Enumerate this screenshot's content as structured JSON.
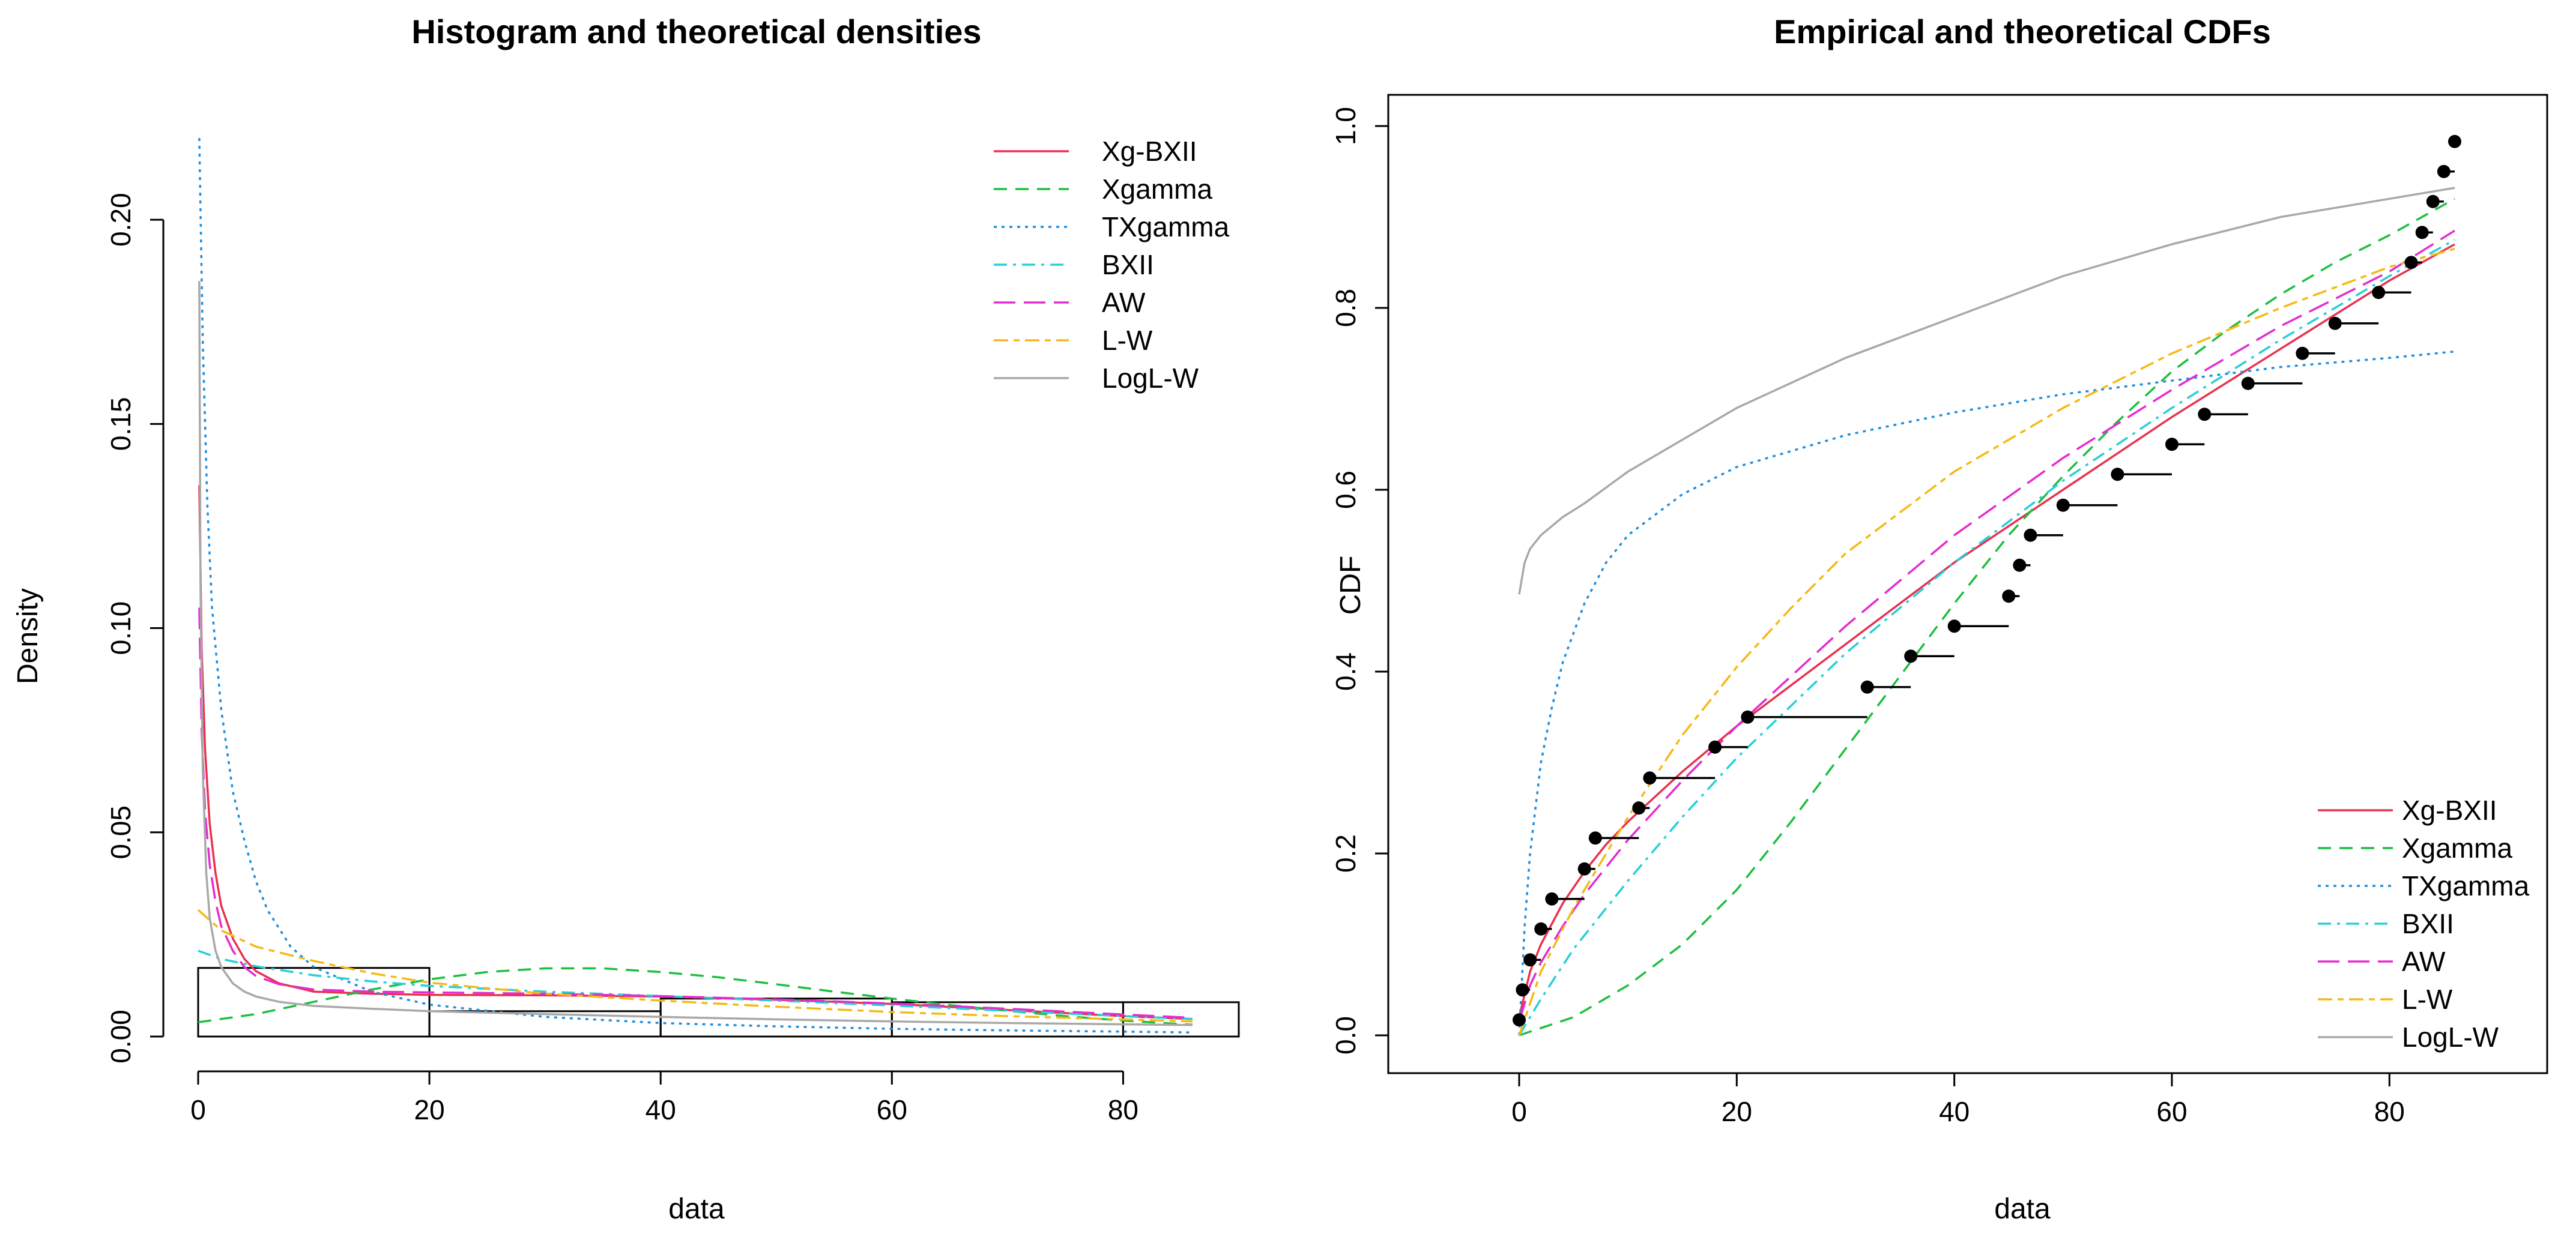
{
  "chart_data": [
    {
      "type": "histogram",
      "title": "Histogram and theoretical densities",
      "xlabel": "data",
      "ylabel": "Density",
      "xlim": [
        0,
        90
      ],
      "ylim": [
        0,
        0.22
      ],
      "xticks": [
        "0",
        "20",
        "40",
        "60",
        "80"
      ],
      "yticks": [
        "0.00",
        "0.05",
        "0.10",
        "0.15",
        "0.20"
      ],
      "legend_position": "top-right",
      "histogram": {
        "bins": [
          {
            "from": 0,
            "to": 20,
            "density": 0.0168
          },
          {
            "from": 20,
            "to": 40,
            "density": 0.0062
          },
          {
            "from": 40,
            "to": 60,
            "density": 0.0093
          },
          {
            "from": 60,
            "to": 80,
            "density": 0.0084
          },
          {
            "from": 80,
            "to": 90,
            "density": 0.0084
          }
        ]
      },
      "series": [
        {
          "name": "Xg-BXII",
          "color": "#e8314f",
          "dash": "solid",
          "x": [
            0.1,
            0.3,
            0.6,
            1,
            1.5,
            2,
            3,
            4,
            5,
            7,
            10,
            15,
            20,
            30,
            40,
            50,
            60,
            70,
            80,
            86
          ],
          "y": [
            0.135,
            0.095,
            0.07,
            0.052,
            0.04,
            0.032,
            0.024,
            0.019,
            0.016,
            0.013,
            0.011,
            0.0105,
            0.0102,
            0.0101,
            0.0098,
            0.009,
            0.008,
            0.0065,
            0.005,
            0.0043
          ]
        },
        {
          "name": "Xgamma",
          "color": "#1cbf3f",
          "dash": "dashed",
          "x": [
            0,
            5,
            10,
            15,
            20,
            25,
            30,
            35,
            40,
            45,
            50,
            55,
            60,
            65,
            70,
            75,
            80,
            86
          ],
          "y": [
            0.0035,
            0.0055,
            0.0085,
            0.0115,
            0.014,
            0.0158,
            0.0167,
            0.0167,
            0.0158,
            0.0145,
            0.0128,
            0.011,
            0.0093,
            0.0077,
            0.0063,
            0.005,
            0.0039,
            0.0029
          ]
        },
        {
          "name": "TXgamma",
          "color": "#1c8fe0",
          "dash": "dotted",
          "x": [
            0.1,
            0.4,
            0.8,
            1.2,
            2,
            3,
            4,
            5,
            6,
            8,
            10,
            15,
            20,
            30,
            40,
            50,
            60,
            70,
            80,
            86
          ],
          "y": [
            0.22,
            0.17,
            0.13,
            0.105,
            0.08,
            0.06,
            0.048,
            0.038,
            0.031,
            0.022,
            0.017,
            0.011,
            0.0078,
            0.0048,
            0.0033,
            0.0025,
            0.0019,
            0.0015,
            0.0012,
            0.001
          ]
        },
        {
          "name": "BXII",
          "color": "#26cfd8",
          "dash": "dashdot",
          "x": [
            0,
            2,
            5,
            10,
            15,
            20,
            30,
            40,
            50,
            60,
            70,
            80,
            86
          ],
          "y": [
            0.021,
            0.019,
            0.0172,
            0.015,
            0.0135,
            0.0124,
            0.011,
            0.0099,
            0.0088,
            0.0076,
            0.0063,
            0.005,
            0.0043
          ]
        },
        {
          "name": "AW",
          "color": "#e52bd0",
          "dash": "longdash",
          "x": [
            0.1,
            0.3,
            0.6,
            1,
            1.5,
            2,
            3,
            4,
            5,
            7,
            10,
            15,
            20,
            30,
            40,
            50,
            60,
            70,
            80,
            86
          ],
          "y": [
            0.105,
            0.075,
            0.055,
            0.042,
            0.033,
            0.027,
            0.021,
            0.017,
            0.0148,
            0.0128,
            0.0115,
            0.011,
            0.0108,
            0.0105,
            0.0099,
            0.0091,
            0.0081,
            0.0068,
            0.0054,
            0.0046
          ]
        },
        {
          "name": "L-W",
          "color": "#f5b915",
          "dash": "twodash",
          "x": [
            0,
            2,
            5,
            10,
            15,
            20,
            30,
            40,
            50,
            60,
            70,
            80,
            86
          ],
          "y": [
            0.031,
            0.026,
            0.022,
            0.0185,
            0.0155,
            0.0132,
            0.0105,
            0.0088,
            0.0073,
            0.006,
            0.005,
            0.0042,
            0.0037
          ]
        },
        {
          "name": "LogL-W",
          "color": "#a8a8a8",
          "dash": "solid",
          "x": [
            0.1,
            0.2,
            0.4,
            0.7,
            1,
            1.5,
            2,
            3,
            4,
            5,
            7,
            10,
            15,
            20,
            30,
            40,
            50,
            60,
            70,
            80,
            86
          ],
          "y": [
            0.185,
            0.11,
            0.065,
            0.04,
            0.029,
            0.021,
            0.017,
            0.013,
            0.011,
            0.0098,
            0.0085,
            0.0075,
            0.0068,
            0.0062,
            0.0055,
            0.0048,
            0.0042,
            0.0037,
            0.0033,
            0.003,
            0.0028
          ]
        }
      ]
    },
    {
      "type": "line",
      "title": "Empirical and theoretical CDFs",
      "xlabel": "data",
      "ylabel": "CDF",
      "xlim": [
        0,
        86
      ],
      "ylim": [
        0,
        1
      ],
      "xticks": [
        "0",
        "20",
        "40",
        "60",
        "80"
      ],
      "yticks": [
        "0.0",
        "0.2",
        "0.4",
        "0.6",
        "0.8",
        "1.0"
      ],
      "legend_position": "bottom-right",
      "empirical": {
        "x": [
          0,
          0.3,
          1,
          2,
          3,
          6,
          7,
          11,
          12,
          18,
          21,
          32,
          36,
          40,
          45,
          46,
          47,
          50,
          55,
          60,
          63,
          67,
          72,
          75,
          79,
          82,
          83,
          84,
          85,
          86
        ],
        "y": [
          0.017,
          0.05,
          0.083,
          0.117,
          0.15,
          0.183,
          0.217,
          0.25,
          0.283,
          0.317,
          0.35,
          0.383,
          0.417,
          0.45,
          0.483,
          0.517,
          0.55,
          0.583,
          0.617,
          0.65,
          0.683,
          0.717,
          0.75,
          0.783,
          0.817,
          0.85,
          0.883,
          0.917,
          0.95,
          0.983
        ]
      },
      "series": [
        {
          "name": "Xg-BXII",
          "color": "#e8314f",
          "dash": "solid",
          "x": [
            0,
            1,
            2,
            4,
            6,
            8,
            10,
            15,
            20,
            30,
            40,
            50,
            60,
            70,
            80,
            86
          ],
          "y": [
            0.02,
            0.07,
            0.1,
            0.145,
            0.18,
            0.21,
            0.235,
            0.29,
            0.34,
            0.43,
            0.52,
            0.6,
            0.68,
            0.755,
            0.83,
            0.87
          ]
        },
        {
          "name": "Xgamma",
          "color": "#1cbf3f",
          "dash": "dashed",
          "x": [
            0,
            5,
            10,
            15,
            20,
            25,
            30,
            35,
            40,
            45,
            50,
            55,
            60,
            65,
            70,
            75,
            80,
            86
          ],
          "y": [
            0.0,
            0.02,
            0.055,
            0.1,
            0.16,
            0.235,
            0.315,
            0.395,
            0.475,
            0.55,
            0.615,
            0.675,
            0.73,
            0.775,
            0.815,
            0.85,
            0.88,
            0.92
          ]
        },
        {
          "name": "TXgamma",
          "color": "#1c8fe0",
          "dash": "dotted",
          "x": [
            0,
            0.5,
            1,
            2,
            3,
            4,
            6,
            8,
            10,
            15,
            20,
            30,
            40,
            50,
            60,
            70,
            80,
            86
          ],
          "y": [
            0.0,
            0.12,
            0.2,
            0.3,
            0.36,
            0.41,
            0.475,
            0.52,
            0.55,
            0.595,
            0.625,
            0.66,
            0.685,
            0.705,
            0.72,
            0.735,
            0.745,
            0.752
          ]
        },
        {
          "name": "BXII",
          "color": "#26cfd8",
          "dash": "dashdot",
          "x": [
            0,
            2,
            5,
            10,
            15,
            20,
            30,
            40,
            50,
            60,
            70,
            80,
            86
          ],
          "y": [
            0.0,
            0.04,
            0.095,
            0.17,
            0.24,
            0.305,
            0.42,
            0.52,
            0.61,
            0.69,
            0.765,
            0.835,
            0.875
          ]
        },
        {
          "name": "AW",
          "color": "#e52bd0",
          "dash": "longdash",
          "x": [
            0,
            1,
            2,
            4,
            6,
            8,
            10,
            15,
            20,
            30,
            40,
            50,
            60,
            70,
            80,
            86
          ],
          "y": [
            0.015,
            0.055,
            0.08,
            0.12,
            0.155,
            0.185,
            0.215,
            0.28,
            0.34,
            0.45,
            0.55,
            0.635,
            0.71,
            0.78,
            0.84,
            0.885
          ]
        },
        {
          "name": "L-W",
          "color": "#f5b915",
          "dash": "twodash",
          "x": [
            0,
            2,
            5,
            10,
            15,
            20,
            25,
            30,
            40,
            50,
            60,
            70,
            80,
            86
          ],
          "y": [
            0.0,
            0.07,
            0.14,
            0.24,
            0.33,
            0.405,
            0.47,
            0.53,
            0.62,
            0.69,
            0.75,
            0.8,
            0.845,
            0.865
          ]
        },
        {
          "name": "LogL-W",
          "color": "#a8a8a8",
          "dash": "solid",
          "x": [
            0,
            0.5,
            1,
            2,
            4,
            6,
            10,
            15,
            20,
            30,
            40,
            50,
            60,
            70,
            80,
            86
          ],
          "y": [
            0.485,
            0.52,
            0.535,
            0.55,
            0.57,
            0.585,
            0.62,
            0.655,
            0.69,
            0.745,
            0.79,
            0.835,
            0.87,
            0.9,
            0.92,
            0.932
          ]
        }
      ]
    }
  ]
}
